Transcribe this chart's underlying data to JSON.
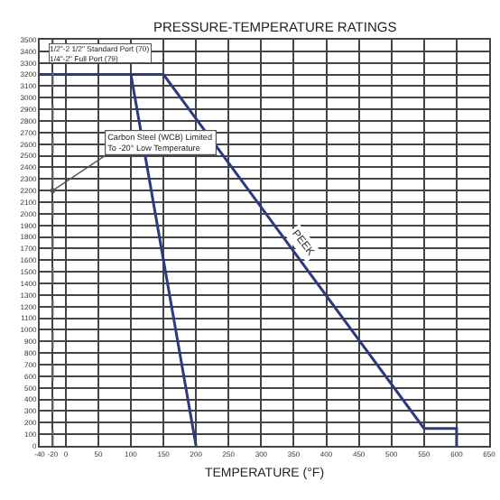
{
  "chart_data": {
    "type": "line",
    "title": "PRESSURE-TEMPERATURE RATINGS",
    "xlabel": "TEMPERATURE (°F)",
    "series": [
      {
        "x": [
          -40,
          100,
          200
        ],
        "values": [
          3200,
          3200,
          0
        ],
        "color": "#2e3a80"
      },
      {
        "name": "PEEK",
        "x": [
          -40,
          150,
          550,
          600,
          600
        ],
        "values": [
          3200,
          3200,
          150,
          150,
          0
        ],
        "color": "#2e3a80"
      }
    ],
    "xlim": [
      -40,
      650
    ],
    "xticks": [
      -40,
      -20,
      0,
      50,
      100,
      150,
      200,
      250,
      300,
      350,
      400,
      450,
      500,
      550,
      600,
      650
    ],
    "ylim": [
      0,
      3500
    ],
    "yticks": [
      0,
      100,
      200,
      300,
      400,
      500,
      600,
      700,
      800,
      900,
      1000,
      1100,
      1200,
      1300,
      1400,
      1500,
      1600,
      1700,
      1800,
      1900,
      2000,
      2100,
      2200,
      2300,
      2400,
      2500,
      2600,
      2700,
      2800,
      2900,
      3000,
      3100,
      3200,
      3300,
      3400,
      3500
    ],
    "ref_lines": [
      {
        "axis": "x",
        "value": -20,
        "line_style": "dashed",
        "color": "#666666"
      }
    ],
    "annotations": [
      "1/2\"-2 1/2\" Standard Port (70)\n1/4\"-2\" Full Port (79)",
      {
        "text": "Carbon Steel (WCB) Limited\nTo -20° Low Temperature",
        "x": -20,
        "y": 2200
      }
    ],
    "grid": true,
    "legend": false,
    "marker": "none",
    "line_style": "solid"
  }
}
